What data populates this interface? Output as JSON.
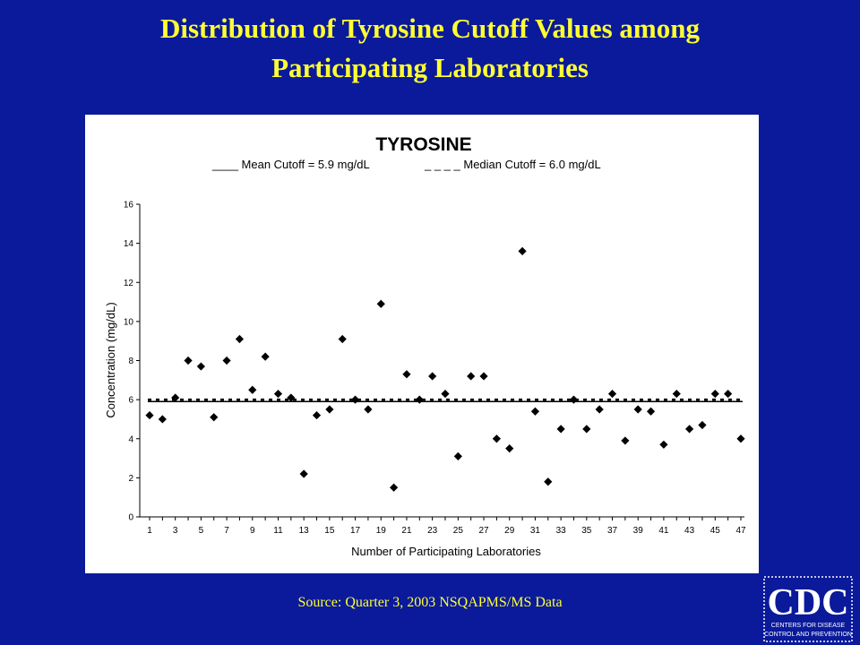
{
  "slide": {
    "title_line1": "Distribution of Tyrosine Cutoff Values among",
    "title_line2": "Participating Laboratories",
    "source": "Source: Quarter 3, 2003 NSQAPMS/MS  Data",
    "logo_text": "CDC",
    "logo_subtext_line1": "CENTERS FOR DISEASE",
    "logo_subtext_line2": "CONTROL AND PREVENTION"
  },
  "colors": {
    "background": "#0a1a9a",
    "title": "#ffff33",
    "marker": "#000000"
  },
  "chart_data": {
    "type": "scatter",
    "title": "TYROSINE",
    "legend_mean": "____ Mean Cutoff = 5.9 mg/dL",
    "legend_median": "_ _ _ _ Median Cutoff = 6.0 mg/dL",
    "xlabel": "Number of Participating Laboratories",
    "ylabel": "Concentration (mg/dL)",
    "xlim": [
      1,
      47
    ],
    "ylim": [
      0,
      16
    ],
    "y_ticks": [
      0,
      2,
      4,
      6,
      8,
      10,
      12,
      14,
      16
    ],
    "x_ticks": [
      1,
      3,
      5,
      7,
      9,
      11,
      13,
      15,
      17,
      19,
      21,
      23,
      25,
      27,
      29,
      31,
      33,
      35,
      37,
      39,
      41,
      43,
      45,
      47
    ],
    "mean_line": 5.9,
    "median_line": 6.0,
    "x": [
      1,
      2,
      3,
      4,
      5,
      6,
      7,
      8,
      9,
      10,
      11,
      12,
      13,
      14,
      15,
      16,
      17,
      18,
      19,
      20,
      21,
      22,
      23,
      24,
      25,
      26,
      27,
      28,
      29,
      30,
      31,
      32,
      33,
      34,
      35,
      36,
      37,
      38,
      39,
      40,
      41,
      42,
      43,
      44,
      45,
      46,
      47
    ],
    "y": [
      5.2,
      5.0,
      6.1,
      8.0,
      7.7,
      5.1,
      8.0,
      9.1,
      6.5,
      8.2,
      6.3,
      6.1,
      2.2,
      5.2,
      5.5,
      9.1,
      6.0,
      5.5,
      10.9,
      1.5,
      7.3,
      6.0,
      7.2,
      6.3,
      3.1,
      7.2,
      7.2,
      4.0,
      3.5,
      13.6,
      5.4,
      1.8,
      4.5,
      6.0,
      4.5,
      5.5,
      6.3,
      3.9,
      5.5,
      5.4,
      3.7,
      6.3,
      4.5,
      4.7,
      6.3,
      6.3,
      4.0
    ],
    "grid": false,
    "legend_position": "top"
  }
}
